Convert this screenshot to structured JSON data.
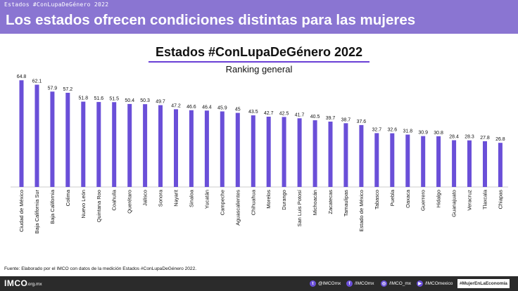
{
  "header": {
    "tag": "Estados #ConLupaDeGénero 2022",
    "headline": "Los estados ofrecen condiciones distintas para las mujeres"
  },
  "colors": {
    "band": "#8a75d2",
    "bar": "#6a4fd8",
    "underline": "#6a3fd6",
    "footer": "#2b2b2b"
  },
  "chart_data": {
    "type": "bar",
    "title": "Estados #ConLupaDeGénero 2022",
    "subtitle": "Ranking general",
    "xlabel": "",
    "ylabel": "",
    "ylim": [
      0,
      70
    ],
    "grid": false,
    "legend": "none",
    "categories": [
      "Ciudad de México",
      "Baja California Sur",
      "Baja California",
      "Colima",
      "Nuevo León",
      "Quintana Roo",
      "Coahuila",
      "Querétaro",
      "Jalisco",
      "Sonora",
      "Nayarit",
      "Sinaloa",
      "Yucatán",
      "Campeche",
      "Aguascalientes",
      "Chihuahua",
      "Morelos",
      "Durango",
      "San Luis Potosí",
      "Michoacán",
      "Zacatecas",
      "Tamaulipas",
      "Estado de México",
      "Tabasco",
      "Puebla",
      "Oaxaca",
      "Guerrero",
      "Hidalgo",
      "Guanajuato",
      "Veracruz",
      "Tlaxcala",
      "Chiapas"
    ],
    "values": [
      64.8,
      62.1,
      57.9,
      57.2,
      51.8,
      51.6,
      51.5,
      50.4,
      50.3,
      49.7,
      47.2,
      46.6,
      46.4,
      45.9,
      45,
      43.5,
      42.7,
      42.5,
      41.7,
      40.5,
      39.7,
      38.7,
      37.6,
      32.7,
      32.6,
      31.8,
      30.9,
      30.8,
      28.4,
      28.3,
      27.8,
      26.8
    ],
    "value_labels": [
      "64.8",
      "62.1",
      "57.9",
      "57.2",
      "51.8",
      "51.6",
      "51.5",
      "50.4",
      "50.3",
      "49.7",
      "47.2",
      "46.6",
      "46.4",
      "45.9",
      "45",
      "43.5",
      "42.7",
      "42.5",
      "41.7",
      "40.5",
      "39.7",
      "38.7",
      "37.6",
      "32.7",
      "32.6",
      "31.8",
      "30.9",
      "30.8",
      "28.4",
      "28.3",
      "27.8",
      "26.8"
    ]
  },
  "source": "Fuente: Elaborado por el IMCO con datos de la medición Estados #ConLupaDeGénero 2022.",
  "footer": {
    "logo": "IMCO",
    "domain": ".org.mx",
    "social": [
      {
        "icon": "twitter-icon",
        "glyph": "t",
        "handle": "@IMCOmx"
      },
      {
        "icon": "facebook-icon",
        "glyph": "f",
        "handle": "/IMCOmx"
      },
      {
        "icon": "instagram-icon",
        "glyph": "◎",
        "handle": "/IMCO_mx"
      },
      {
        "icon": "youtube-icon",
        "glyph": "▶",
        "handle": "/IMCOmexico"
      }
    ],
    "hashtag": "#MujerEnLaEconomía"
  }
}
